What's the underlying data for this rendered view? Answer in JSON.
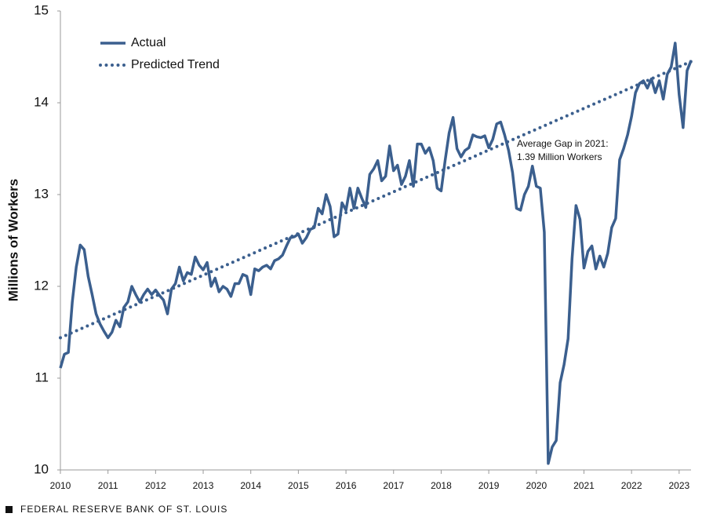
{
  "chart_data": {
    "type": "line",
    "ylabel": "Millions of Workers",
    "annotation": [
      "Average Gap in 2021:",
      "1.39 Million Workers"
    ],
    "source": "FEDERAL RESERVE BANK OF ST. LOUIS",
    "xlim": [
      2010,
      2023.25
    ],
    "xticks": [
      2010,
      2011,
      2012,
      2013,
      2014,
      2015,
      2016,
      2017,
      2018,
      2019,
      2020,
      2021,
      2022,
      2023
    ],
    "ylim": [
      10,
      15
    ],
    "yticks": [
      10,
      11,
      12,
      13,
      14,
      15
    ],
    "legend": "top-left",
    "series": [
      {
        "name": "Actual",
        "color": "#3b5f8e",
        "style": "solid",
        "x": [
          2010,
          2010.083,
          2010.167,
          2010.25,
          2010.333,
          2010.417,
          2010.5,
          2010.583,
          2010.667,
          2010.75,
          2010.833,
          2010.917,
          2011,
          2011.083,
          2011.167,
          2011.25,
          2011.333,
          2011.417,
          2011.5,
          2011.583,
          2011.667,
          2011.75,
          2011.833,
          2011.917,
          2012,
          2012.083,
          2012.167,
          2012.25,
          2012.333,
          2012.417,
          2012.5,
          2012.583,
          2012.667,
          2012.75,
          2012.833,
          2012.917,
          2013,
          2013.083,
          2013.167,
          2013.25,
          2013.333,
          2013.417,
          2013.5,
          2013.583,
          2013.667,
          2013.75,
          2013.833,
          2013.917,
          2014,
          2014.083,
          2014.167,
          2014.25,
          2014.333,
          2014.417,
          2014.5,
          2014.583,
          2014.667,
          2014.75,
          2014.833,
          2014.917,
          2015,
          2015.083,
          2015.167,
          2015.25,
          2015.333,
          2015.417,
          2015.5,
          2015.583,
          2015.667,
          2015.75,
          2015.833,
          2015.917,
          2016,
          2016.083,
          2016.167,
          2016.25,
          2016.333,
          2016.417,
          2016.5,
          2016.583,
          2016.667,
          2016.75,
          2016.833,
          2016.917,
          2017,
          2017.083,
          2017.167,
          2017.25,
          2017.333,
          2017.417,
          2017.5,
          2017.583,
          2017.667,
          2017.75,
          2017.833,
          2017.917,
          2018,
          2018.083,
          2018.167,
          2018.25,
          2018.333,
          2018.417,
          2018.5,
          2018.583,
          2018.667,
          2018.75,
          2018.833,
          2018.917,
          2019,
          2019.083,
          2019.167,
          2019.25,
          2019.333,
          2019.417,
          2019.5,
          2019.583,
          2019.667,
          2019.75,
          2019.833,
          2019.917,
          2020,
          2020.083,
          2020.167,
          2020.25,
          2020.333,
          2020.417,
          2020.5,
          2020.583,
          2020.667,
          2020.75,
          2020.833,
          2020.917,
          2021,
          2021.083,
          2021.167,
          2021.25,
          2021.333,
          2021.417,
          2021.5,
          2021.583,
          2021.667,
          2021.75,
          2021.833,
          2021.917,
          2022,
          2022.083,
          2022.167,
          2022.25,
          2022.333,
          2022.417,
          2022.5,
          2022.583,
          2022.667,
          2022.75,
          2022.833,
          2022.917,
          2023,
          2023.083,
          2023.167,
          2023.25
        ],
        "values": [
          11.11,
          11.26,
          11.28,
          11.83,
          12.21,
          12.45,
          12.4,
          12.11,
          11.91,
          11.7,
          11.59,
          11.51,
          11.44,
          11.5,
          11.63,
          11.56,
          11.77,
          11.83,
          12.0,
          11.91,
          11.83,
          11.91,
          11.97,
          11.91,
          11.96,
          11.9,
          11.85,
          11.7,
          11.97,
          12.03,
          12.21,
          12.06,
          12.15,
          12.13,
          12.32,
          12.23,
          12.18,
          12.26,
          12.0,
          12.09,
          11.94,
          12.0,
          11.97,
          11.89,
          12.03,
          12.03,
          12.13,
          12.11,
          11.91,
          12.19,
          12.17,
          12.21,
          12.23,
          12.19,
          12.28,
          12.3,
          12.34,
          12.44,
          12.53,
          12.54,
          12.57,
          12.47,
          12.53,
          12.62,
          12.64,
          12.85,
          12.79,
          13.0,
          12.87,
          12.54,
          12.57,
          12.91,
          12.83,
          13.07,
          12.85,
          13.07,
          12.96,
          12.86,
          13.22,
          13.28,
          13.37,
          13.15,
          13.2,
          13.53,
          13.26,
          13.32,
          13.11,
          13.2,
          13.37,
          13.09,
          13.55,
          13.55,
          13.45,
          13.51,
          13.37,
          13.07,
          13.04,
          13.37,
          13.67,
          13.84,
          13.5,
          13.41,
          13.48,
          13.51,
          13.65,
          13.63,
          13.62,
          13.64,
          13.51,
          13.6,
          13.77,
          13.79,
          13.65,
          13.48,
          13.24,
          12.85,
          12.83,
          13.0,
          13.09,
          13.31,
          13.09,
          13.07,
          12.59,
          10.07,
          10.25,
          10.32,
          10.95,
          11.15,
          11.43,
          12.3,
          12.88,
          12.73,
          12.2,
          12.38,
          12.44,
          12.19,
          12.33,
          12.21,
          12.36,
          12.64,
          12.74,
          13.38,
          13.5,
          13.65,
          13.85,
          14.11,
          14.21,
          14.24,
          14.16,
          14.26,
          14.11,
          14.24,
          14.04,
          14.31,
          14.39,
          14.65,
          14.09,
          13.73,
          14.35,
          14.46
        ]
      },
      {
        "name": "Predicted Trend",
        "color": "#3b5f8e",
        "style": "dotted",
        "x": [
          2010,
          2023.25
        ],
        "values": [
          11.44,
          14.45
        ]
      }
    ]
  }
}
